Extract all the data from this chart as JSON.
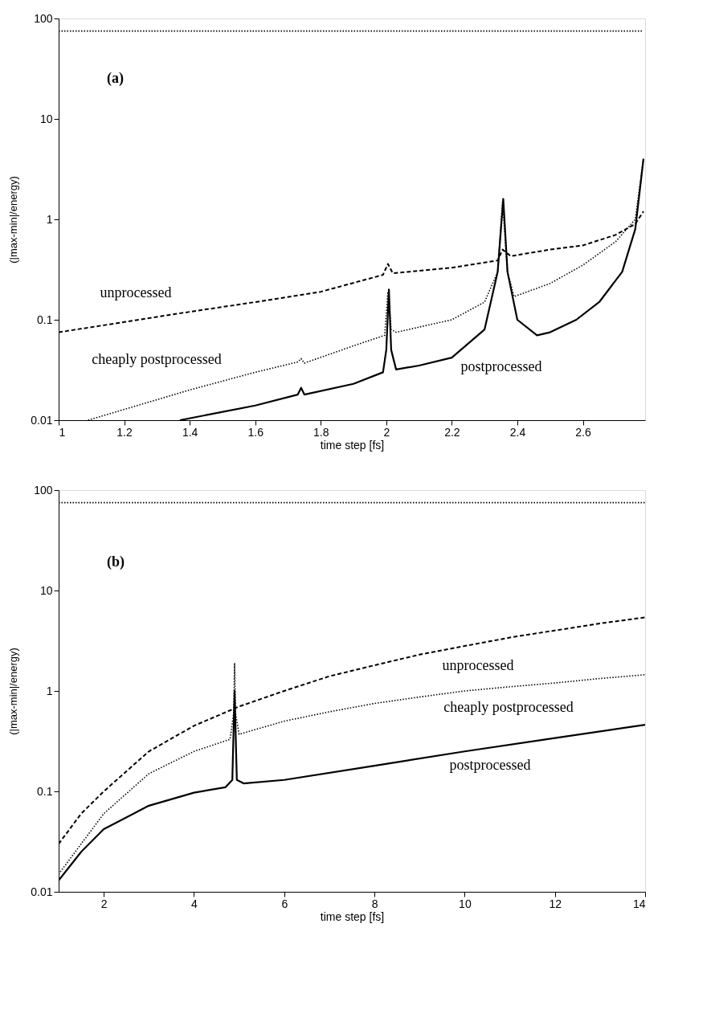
{
  "chart_data": [
    {
      "type": "line",
      "xlabel": "time step [fs]",
      "ylabel": "(|max-min|/energy)",
      "log": "y",
      "grid": false,
      "xlim": [
        1,
        2.79
      ],
      "xticks": [
        1,
        1.2,
        1.4,
        1.6,
        1.8,
        2,
        2.2,
        2.4,
        2.6
      ],
      "ylim": [
        0.01,
        100
      ],
      "yticks": [
        0.01,
        0.1,
        1,
        10,
        100
      ],
      "annotations": [
        "(a)",
        "unprocessed",
        "cheaply postprocessed",
        "postprocessed"
      ],
      "series": [
        {
          "color": "#000000",
          "line_style": "dotted",
          "x": [
            1,
            2.785
          ],
          "values": [
            75,
            75
          ]
        },
        {
          "color": "#000000",
          "line_style": "dashed",
          "x": [
            1,
            1.2,
            1.4,
            1.6,
            1.8,
            1.99,
            2.005,
            2.02,
            2.2,
            2.34,
            2.355,
            2.38,
            2.5,
            2.6,
            2.7,
            2.76,
            2.785
          ],
          "values": [
            0.075,
            0.095,
            0.12,
            0.15,
            0.19,
            0.28,
            0.36,
            0.29,
            0.33,
            0.39,
            0.5,
            0.43,
            0.5,
            0.55,
            0.7,
            0.9,
            1.2
          ]
        },
        {
          "color": "#000000",
          "line_style": "dotted",
          "x": [
            1.09,
            1.4,
            1.6,
            1.73,
            1.74,
            1.75,
            1.9,
            1.995,
            2.005,
            2.015,
            2.03,
            2.2,
            2.3,
            2.34,
            2.355,
            2.37,
            2.39,
            2.5,
            2.6,
            2.7,
            2.76,
            2.785
          ],
          "values": [
            0.01,
            0.02,
            0.03,
            0.038,
            0.041,
            0.037,
            0.055,
            0.07,
            0.19,
            0.08,
            0.075,
            0.1,
            0.15,
            0.3,
            1.5,
            0.3,
            0.17,
            0.23,
            0.35,
            0.6,
            1.0,
            4
          ]
        },
        {
          "color": "#000000",
          "line_style": "solid",
          "x": [
            1.37,
            1.6,
            1.73,
            1.74,
            1.75,
            1.9,
            1.99,
            2.0,
            2.008,
            2.015,
            2.03,
            2.1,
            2.2,
            2.3,
            2.34,
            2.357,
            2.37,
            2.4,
            2.46,
            2.5,
            2.58,
            2.65,
            2.72,
            2.76,
            2.785
          ],
          "values": [
            0.01,
            0.014,
            0.018,
            0.021,
            0.018,
            0.023,
            0.03,
            0.05,
            0.2,
            0.05,
            0.032,
            0.035,
            0.042,
            0.08,
            0.3,
            1.6,
            0.3,
            0.1,
            0.07,
            0.075,
            0.1,
            0.15,
            0.3,
            0.8,
            4
          ]
        }
      ]
    },
    {
      "type": "line",
      "xlabel": "time step [fs]",
      "ylabel": "(|max-min|/energy)",
      "log": "y",
      "grid": false,
      "xlim": [
        1,
        14
      ],
      "xticks": [
        2,
        4,
        6,
        8,
        10,
        12,
        14
      ],
      "ylim": [
        0.01,
        100
      ],
      "yticks": [
        0.01,
        0.1,
        1,
        10,
        100
      ],
      "annotations": [
        "(b)",
        "unprocessed",
        "cheaply postprocessed",
        "postprocessed"
      ],
      "series": [
        {
          "color": "#000000",
          "line_style": "dotted",
          "x": [
            1,
            14
          ],
          "values": [
            75,
            75
          ]
        },
        {
          "color": "#000000",
          "line_style": "dashed",
          "x": [
            1,
            1.5,
            2,
            3,
            4,
            5,
            6,
            7,
            8,
            9,
            10,
            11,
            12,
            13,
            14
          ],
          "values": [
            0.03,
            0.06,
            0.1,
            0.25,
            0.45,
            0.7,
            1.0,
            1.4,
            1.8,
            2.3,
            2.8,
            3.4,
            4.0,
            4.7,
            5.4
          ]
        },
        {
          "color": "#000000",
          "line_style": "dotted",
          "x": [
            1,
            1.5,
            2,
            3,
            4,
            4.8,
            4.88,
            4.9,
            4.92,
            5,
            6,
            7,
            8,
            9,
            10,
            11,
            12,
            13,
            14
          ],
          "values": [
            0.015,
            0.03,
            0.06,
            0.15,
            0.25,
            0.33,
            0.6,
            1.9,
            0.6,
            0.37,
            0.5,
            0.62,
            0.75,
            0.87,
            1.0,
            1.1,
            1.2,
            1.33,
            1.45
          ]
        },
        {
          "color": "#000000",
          "line_style": "solid",
          "x": [
            1,
            1.5,
            2,
            3,
            4,
            4.7,
            4.85,
            4.9,
            4.95,
            5.1,
            6,
            8,
            10,
            12,
            14
          ],
          "values": [
            0.013,
            0.025,
            0.042,
            0.072,
            0.097,
            0.11,
            0.13,
            1.0,
            0.13,
            0.12,
            0.13,
            0.18,
            0.25,
            0.34,
            0.46
          ]
        }
      ]
    }
  ]
}
